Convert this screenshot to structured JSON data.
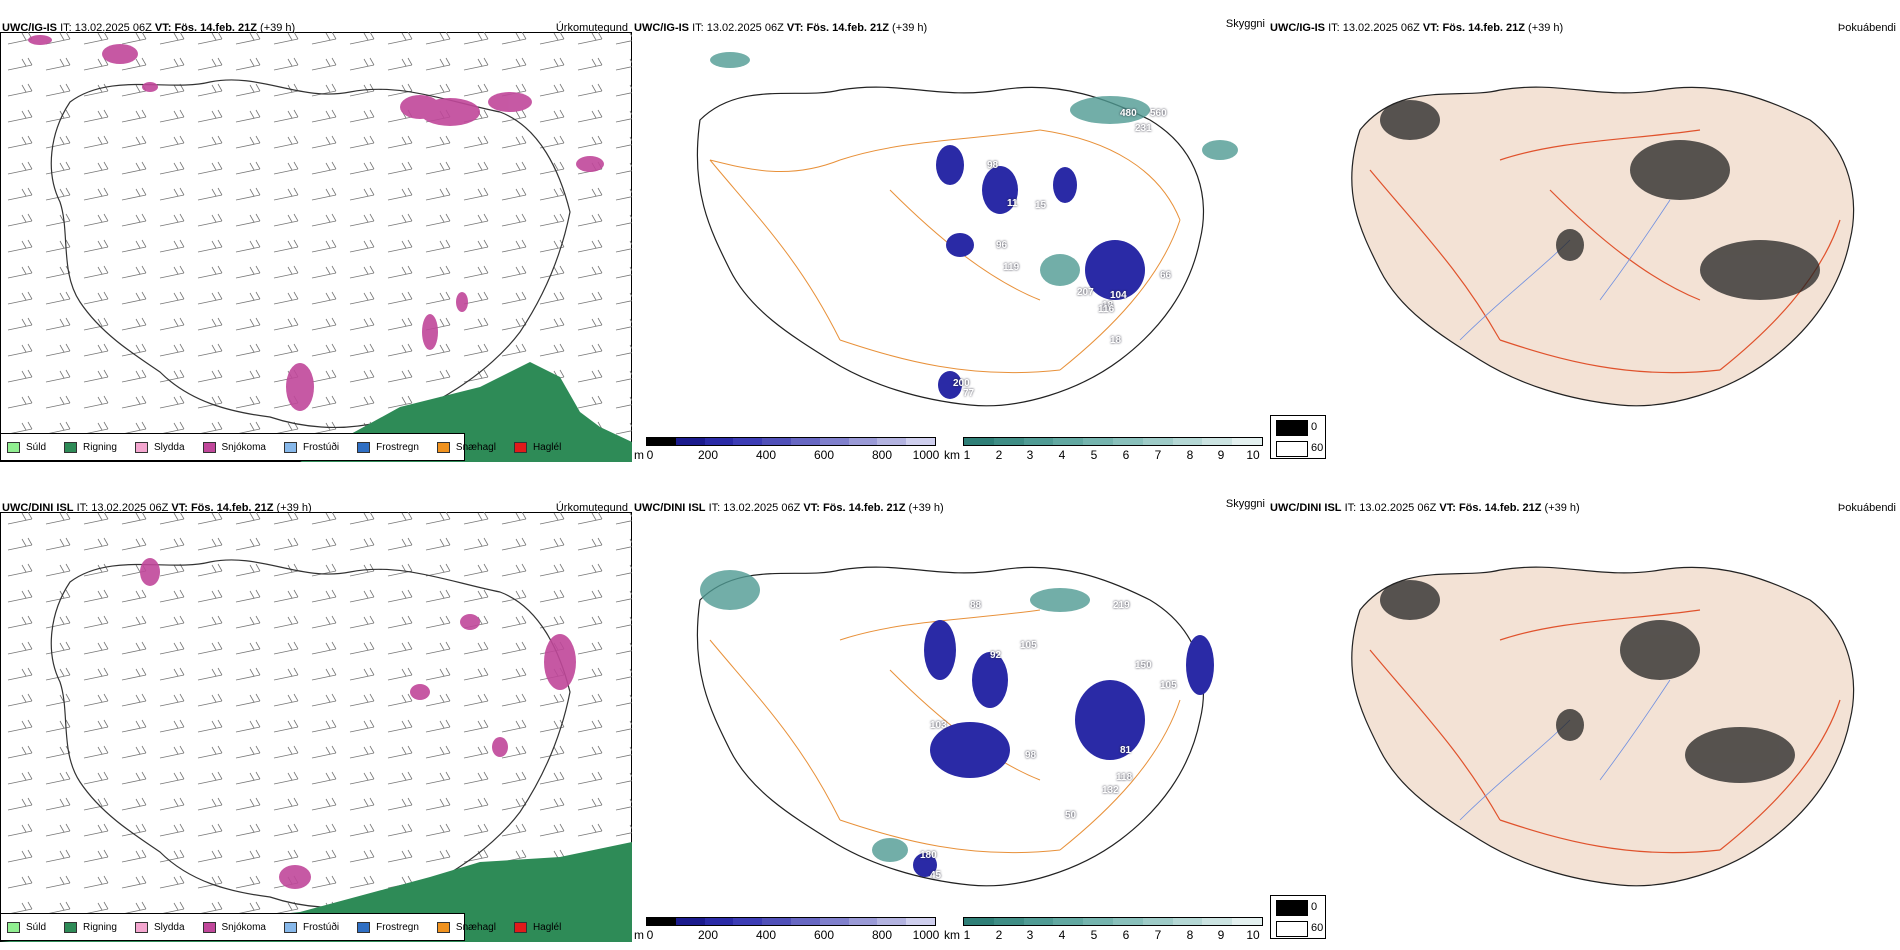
{
  "rows": [
    {
      "model": "UWC/IG-IS",
      "it_label": "IT:",
      "it_value": "13.02.2025 06Z",
      "vt_label": "VT:",
      "vt_value": "Fös. 14.feb. 21Z",
      "lead": "(+39 h)",
      "panels": {
        "precip": "Úrkomutegund",
        "visibility": "Skyggni",
        "fog": "Þokuábendi"
      },
      "vis_values": [
        "480",
        "560",
        "231",
        "98",
        "11",
        "15",
        "96",
        "119",
        "207",
        "18",
        "104",
        "116",
        "66",
        "200",
        "77",
        "18"
      ]
    },
    {
      "model": "UWC/DINI ISL",
      "it_label": "IT:",
      "it_value": "13.02.2025 06Z",
      "vt_label": "VT:",
      "vt_value": "Fös. 14.feb. 21Z",
      "lead": "(+39 h)",
      "panels": {
        "precip": "Úrkomutegund",
        "visibility": "Skyggni",
        "fog": "Þokuábendi"
      },
      "vis_values": [
        "88",
        "92",
        "105",
        "103",
        "98",
        "81",
        "118",
        "132",
        "180",
        "45",
        "219",
        "150",
        "105",
        "50"
      ]
    }
  ],
  "precip_legend": [
    {
      "label": "Súld",
      "color": "#90ee90"
    },
    {
      "label": "Rigning",
      "color": "#2e8b57"
    },
    {
      "label": "Slydda",
      "color": "#f4a6cf"
    },
    {
      "label": "Snjókoma",
      "color": "#c0479a"
    },
    {
      "label": "Frostúði",
      "color": "#87b8ea"
    },
    {
      "label": "Frostregn",
      "color": "#2f6fc4"
    },
    {
      "label": "Snæhagl",
      "color": "#f0921e"
    },
    {
      "label": "Haglél",
      "color": "#e21a1a"
    }
  ],
  "ceiling_bar": {
    "unit": "m",
    "ticks": [
      "0",
      "200",
      "400",
      "600",
      "800",
      "1000"
    ],
    "colors": [
      "#000000",
      "#1a1a8c",
      "#2a2aa6",
      "#3c3cb4",
      "#5050b8",
      "#6767c2",
      "#8080cc",
      "#9a9ad6",
      "#b3b3e0",
      "#cfcfee"
    ]
  },
  "vis_bar": {
    "unit": "km",
    "ticks": [
      "1",
      "2",
      "3",
      "4",
      "5",
      "6",
      "7",
      "8",
      "9",
      "10"
    ],
    "colors": [
      "#2f7f77",
      "#3f8d85",
      "#509b94",
      "#62a8a1",
      "#75b4ae",
      "#89c0bb",
      "#9ecbc7",
      "#b4d7d4",
      "#cbe3e1",
      "#e3f0ef"
    ]
  },
  "fog_legend": {
    "black": "0",
    "white": "60"
  },
  "colors": {
    "snow": "#c0479a",
    "rain": "#2e8b57",
    "ceiling": "#2a2aa6",
    "visteal": "#4f9a92",
    "land": "#f3e2d5",
    "roads": "#e0522c",
    "rivers": "#6f8fe0",
    "orange_roads": "#e8913a"
  }
}
